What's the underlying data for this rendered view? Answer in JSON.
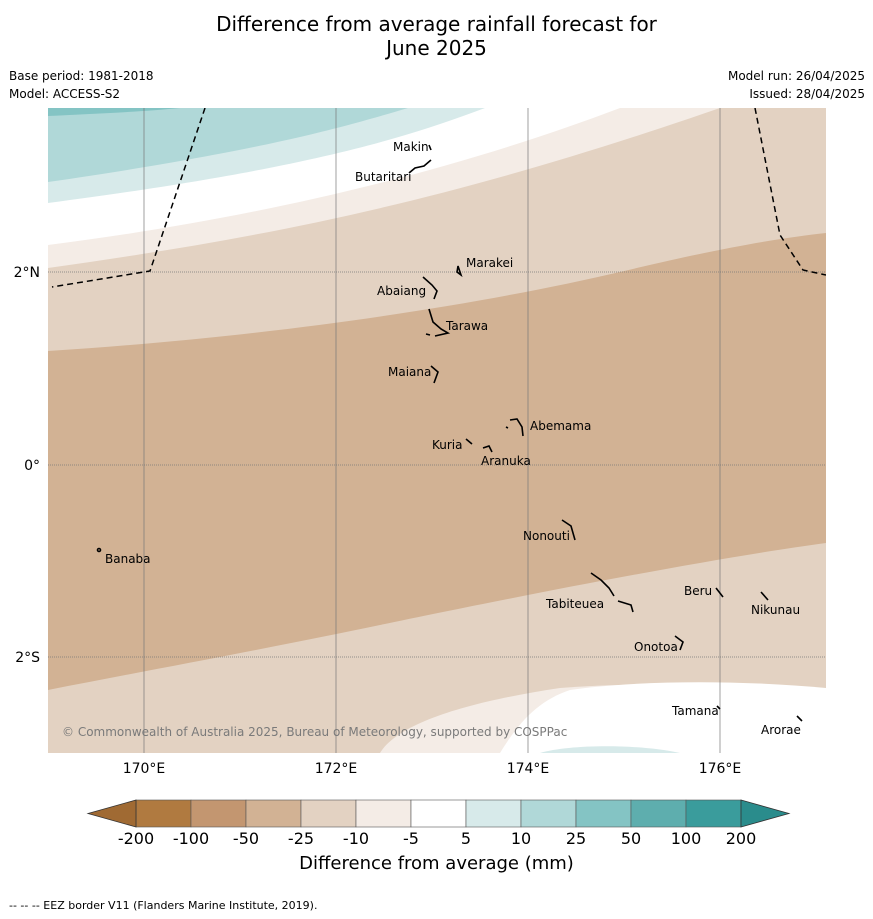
{
  "title_line1": "Difference from average rainfall forecast for",
  "title_line2": "June 2025",
  "meta": {
    "base_period": "Base period: 1981-2018",
    "model": "Model: ACCESS-S2",
    "model_run": "Model run: 26/04/2025",
    "issued": "Issued: 28/04/2025"
  },
  "copyright": "© Commonwealth of Australia 2025, Bureau of Meteorology, supported by COSPPac",
  "axes": {
    "lon_ticks": [
      {
        "value": 170,
        "label": "170°E"
      },
      {
        "value": 172,
        "label": "172°E"
      },
      {
        "value": 174,
        "label": "174°E"
      },
      {
        "value": 176,
        "label": "176°E"
      }
    ],
    "lat_ticks": [
      {
        "value": 2,
        "label": "2°N"
      },
      {
        "value": 0,
        "label": "0°"
      },
      {
        "value": -2,
        "label": "2°S"
      }
    ]
  },
  "places": [
    {
      "name": "Makin"
    },
    {
      "name": "Butaritari"
    },
    {
      "name": "Marakei"
    },
    {
      "name": "Abaiang"
    },
    {
      "name": "Tarawa"
    },
    {
      "name": "Maiana"
    },
    {
      "name": "Abemama"
    },
    {
      "name": "Kuria"
    },
    {
      "name": "Aranuka"
    },
    {
      "name": "Nonouti"
    },
    {
      "name": "Banaba"
    },
    {
      "name": "Beru"
    },
    {
      "name": "Nikunau"
    },
    {
      "name": "Tabiteuea"
    },
    {
      "name": "Onotoa"
    },
    {
      "name": "Tamana"
    },
    {
      "name": "Arorae"
    }
  ],
  "legend": {
    "title": "Difference from average (mm)",
    "tick_labels": [
      "-200",
      "-100",
      "-50",
      "-25",
      "-10",
      "-5",
      "5",
      "10",
      "25",
      "50",
      "100",
      "200"
    ],
    "colors": [
      "#b07a40",
      "#c39670",
      "#d2b294",
      "#e3d2c2",
      "#f4ece6",
      "#ffffff",
      "#d7eaea",
      "#b0d8d8",
      "#84c4c4",
      "#5eaeae",
      "#3a9c9c"
    ],
    "end_low_color": "#a06a33",
    "end_high_color": "#2a8c8c"
  },
  "footer": "-- -- -- EEZ border V11 (Flanders Marine Institute, 2019)."
}
